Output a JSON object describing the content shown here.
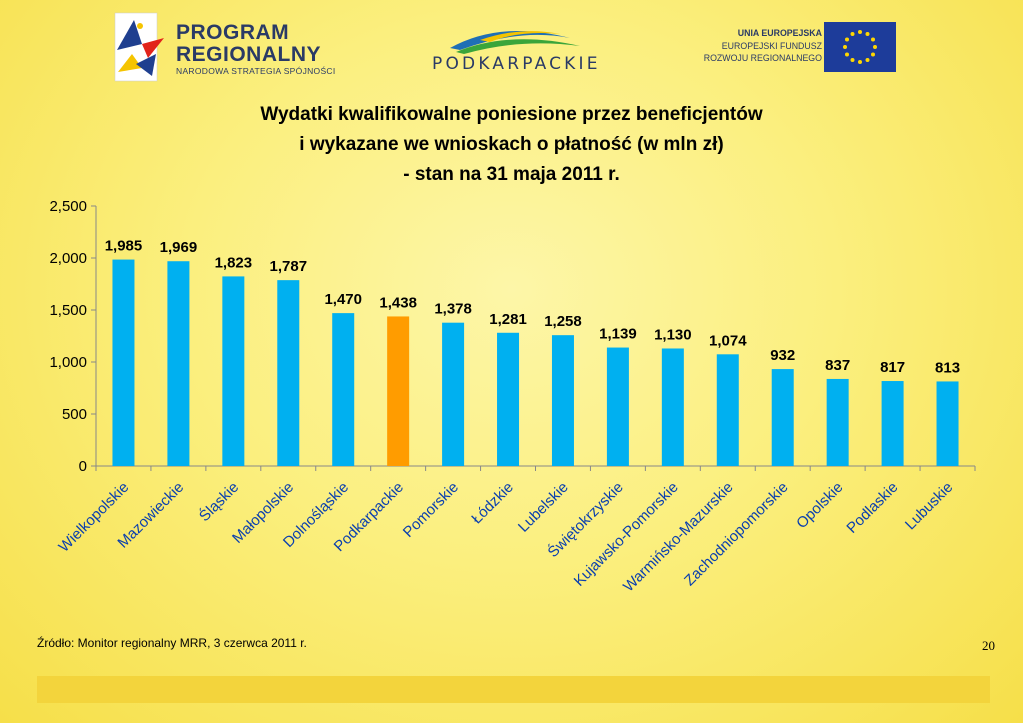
{
  "header": {
    "logo_left_line1": "PROGRAM",
    "logo_left_line2": "REGIONALNY",
    "logo_left_sub": "NARODOWA STRATEGIA SPÓJNOŚCI",
    "logo_center": "PODKARPACKIE",
    "logo_right_line1": "UNIA EUROPEJSKA",
    "logo_right_line2": "EUROPEJSKI FUNDUSZ",
    "logo_right_line3": "ROZWOJU REGIONALNEGO"
  },
  "chart_data": {
    "type": "bar",
    "title_lines": [
      "Wydatki kwalifikowalne poniesione przez  beneficjentów",
      "i wykazane we wnioskach o płatność (w mln zł)",
      "- stan na 31 maja 2011 r."
    ],
    "categories": [
      "Wielkopolskie",
      "Mazowieckie",
      "Śląskie",
      "Małopolskie",
      "Dolnośląskie",
      "Podkarpackie",
      "Pomorskie",
      "Łódzkie",
      "Lubelskie",
      "Świętokrzyskie",
      "Kujawsko-Pomorskie",
      "Warmińsko-Mazurskie",
      "Zachodniopomorskie",
      "Opolskie",
      "Podlaskie",
      "Lubuskie"
    ],
    "values": [
      1985,
      1969,
      1823,
      1787,
      1470,
      1438,
      1378,
      1281,
      1258,
      1139,
      1130,
      1074,
      932,
      837,
      817,
      813
    ],
    "value_labels": [
      "1,985",
      "1,969",
      "1,823",
      "1,787",
      "1,470",
      "1,438",
      "1,378",
      "1,281",
      "1,258",
      "1,139",
      "1,130",
      "1,074",
      "932",
      "837",
      "817",
      "813"
    ],
    "y_ticks": [
      "0",
      "500",
      "1,000",
      "1,500",
      "2,000",
      "2,500"
    ],
    "ylim": [
      0,
      2500
    ],
    "grid": false,
    "bar_color": "#00b0f0",
    "highlight_color": "#ff9c00",
    "highlight_category": "Podkarpackie"
  },
  "footer": {
    "source": "Źródło: Monitor regionalny MRR, 3 czerwca 2011 r.",
    "page_number": "20"
  }
}
